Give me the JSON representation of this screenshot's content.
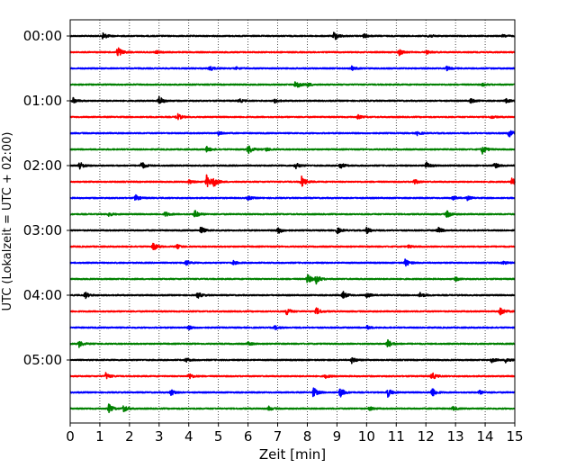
{
  "chart_data": {
    "type": "line",
    "title": "",
    "xlabel": "Zeit  [min]",
    "ylabel": "UTC (Lokalzeit = UTC + 02:00)",
    "xlim": [
      0,
      15
    ],
    "x_ticks": [
      "0",
      "1",
      "2",
      "3",
      "4",
      "5",
      "6",
      "7",
      "8",
      "9",
      "10",
      "11",
      "12",
      "13",
      "14",
      "15"
    ],
    "y_ticks": [
      "00:00",
      "01:00",
      "02:00",
      "03:00",
      "04:00",
      "05:00"
    ],
    "grid": "vertical dotted",
    "trace_interval_min": 15,
    "series_colors": [
      "#000000",
      "#ff0000",
      "#0000ff",
      "#008000"
    ],
    "traces": [
      {
        "start": "00:00",
        "color": "#000000",
        "events": [
          [
            1.1,
            0.6
          ],
          [
            8.9,
            0.8
          ],
          [
            9.9,
            0.3
          ],
          [
            12.1,
            0.3
          ],
          [
            14.6,
            0.2
          ]
        ]
      },
      {
        "start": "00:15",
        "color": "#ff0000",
        "events": [
          [
            1.6,
            1.0
          ],
          [
            2.9,
            0.2
          ],
          [
            11.1,
            0.5
          ],
          [
            12.0,
            0.3
          ]
        ]
      },
      {
        "start": "00:30",
        "color": "#0000ff",
        "events": [
          [
            4.7,
            0.4
          ],
          [
            5.6,
            0.2
          ],
          [
            9.5,
            0.3
          ],
          [
            12.7,
            0.3
          ]
        ]
      },
      {
        "start": "00:45",
        "color": "#008000",
        "events": [
          [
            7.6,
            0.8
          ],
          [
            8.0,
            0.3
          ],
          [
            13.9,
            0.2
          ]
        ]
      },
      {
        "start": "01:00",
        "color": "#000000",
        "events": [
          [
            0.1,
            0.4
          ],
          [
            3.0,
            0.7
          ],
          [
            5.7,
            0.3
          ],
          [
            6.9,
            0.3
          ],
          [
            13.5,
            0.4
          ],
          [
            14.7,
            0.3
          ]
        ]
      },
      {
        "start": "01:15",
        "color": "#ff0000",
        "events": [
          [
            3.6,
            0.6
          ],
          [
            9.7,
            0.3
          ],
          [
            14.2,
            0.2
          ]
        ]
      },
      {
        "start": "01:30",
        "color": "#0000ff",
        "events": [
          [
            5.0,
            0.3
          ],
          [
            11.7,
            0.3
          ],
          [
            14.8,
            0.6
          ]
        ]
      },
      {
        "start": "01:45",
        "color": "#008000",
        "events": [
          [
            4.6,
            0.4
          ],
          [
            6.0,
            0.8
          ],
          [
            6.6,
            0.3
          ],
          [
            13.9,
            0.7
          ]
        ]
      },
      {
        "start": "02:00",
        "color": "#000000",
        "events": [
          [
            0.3,
            0.7
          ],
          [
            2.4,
            0.6
          ],
          [
            7.6,
            0.5
          ],
          [
            9.1,
            0.5
          ],
          [
            12.0,
            0.6
          ],
          [
            14.3,
            0.5
          ]
        ]
      },
      {
        "start": "02:15",
        "color": "#ff0000",
        "events": [
          [
            4.0,
            0.3
          ],
          [
            4.6,
            1.0
          ],
          [
            4.8,
            1.0
          ],
          [
            7.8,
            0.9
          ],
          [
            11.6,
            0.4
          ],
          [
            14.9,
            0.6
          ]
        ]
      },
      {
        "start": "02:30",
        "color": "#0000ff",
        "events": [
          [
            2.2,
            0.5
          ],
          [
            6.0,
            0.3
          ],
          [
            12.9,
            0.3
          ],
          [
            13.4,
            0.3
          ]
        ]
      },
      {
        "start": "02:45",
        "color": "#008000",
        "events": [
          [
            1.3,
            0.3
          ],
          [
            3.2,
            0.4
          ],
          [
            4.2,
            0.6
          ],
          [
            12.7,
            0.6
          ]
        ]
      },
      {
        "start": "03:00",
        "color": "#000000",
        "events": [
          [
            4.4,
            0.6
          ],
          [
            7.0,
            0.6
          ],
          [
            9.0,
            0.5
          ],
          [
            10.0,
            0.5
          ],
          [
            12.4,
            0.5
          ]
        ]
      },
      {
        "start": "03:15",
        "color": "#ff0000",
        "events": [
          [
            2.8,
            0.6
          ],
          [
            3.6,
            0.3
          ],
          [
            11.4,
            0.2
          ]
        ]
      },
      {
        "start": "03:30",
        "color": "#0000ff",
        "events": [
          [
            3.9,
            0.4
          ],
          [
            5.5,
            0.3
          ],
          [
            11.3,
            0.6
          ],
          [
            14.6,
            0.3
          ]
        ]
      },
      {
        "start": "03:45",
        "color": "#008000",
        "events": [
          [
            8.0,
            0.8
          ],
          [
            8.3,
            0.7
          ],
          [
            13.0,
            0.3
          ]
        ]
      },
      {
        "start": "04:00",
        "color": "#000000",
        "events": [
          [
            0.5,
            0.5
          ],
          [
            4.3,
            0.5
          ],
          [
            9.2,
            0.6
          ],
          [
            10.0,
            0.4
          ],
          [
            11.8,
            0.4
          ]
        ]
      },
      {
        "start": "04:15",
        "color": "#ff0000",
        "events": [
          [
            7.3,
            0.6
          ],
          [
            8.3,
            0.6
          ],
          [
            14.5,
            0.8
          ]
        ]
      },
      {
        "start": "04:30",
        "color": "#0000ff",
        "events": [
          [
            4.0,
            0.3
          ],
          [
            6.9,
            0.3
          ],
          [
            10.0,
            0.3
          ]
        ]
      },
      {
        "start": "04:45",
        "color": "#008000",
        "events": [
          [
            0.3,
            0.5
          ],
          [
            6.0,
            0.3
          ],
          [
            10.7,
            0.7
          ]
        ]
      },
      {
        "start": "05:00",
        "color": "#000000",
        "events": [
          [
            3.9,
            0.3
          ],
          [
            9.5,
            0.5
          ],
          [
            14.2,
            0.4
          ],
          [
            14.7,
            0.5
          ]
        ]
      },
      {
        "start": "05:15",
        "color": "#ff0000",
        "events": [
          [
            1.2,
            0.5
          ],
          [
            4.0,
            0.5
          ],
          [
            8.6,
            0.3
          ],
          [
            12.2,
            0.6
          ]
        ]
      },
      {
        "start": "05:30",
        "color": "#0000ff",
        "events": [
          [
            3.4,
            0.5
          ],
          [
            8.2,
            0.8
          ],
          [
            9.1,
            0.8
          ],
          [
            10.7,
            0.8
          ],
          [
            12.2,
            0.8
          ],
          [
            13.8,
            0.3
          ]
        ]
      },
      {
        "start": "05:45",
        "color": "#008000",
        "events": [
          [
            1.3,
            0.7
          ],
          [
            1.8,
            0.6
          ],
          [
            6.7,
            0.3
          ],
          [
            10.1,
            0.3
          ],
          [
            12.9,
            0.3
          ]
        ]
      }
    ]
  }
}
